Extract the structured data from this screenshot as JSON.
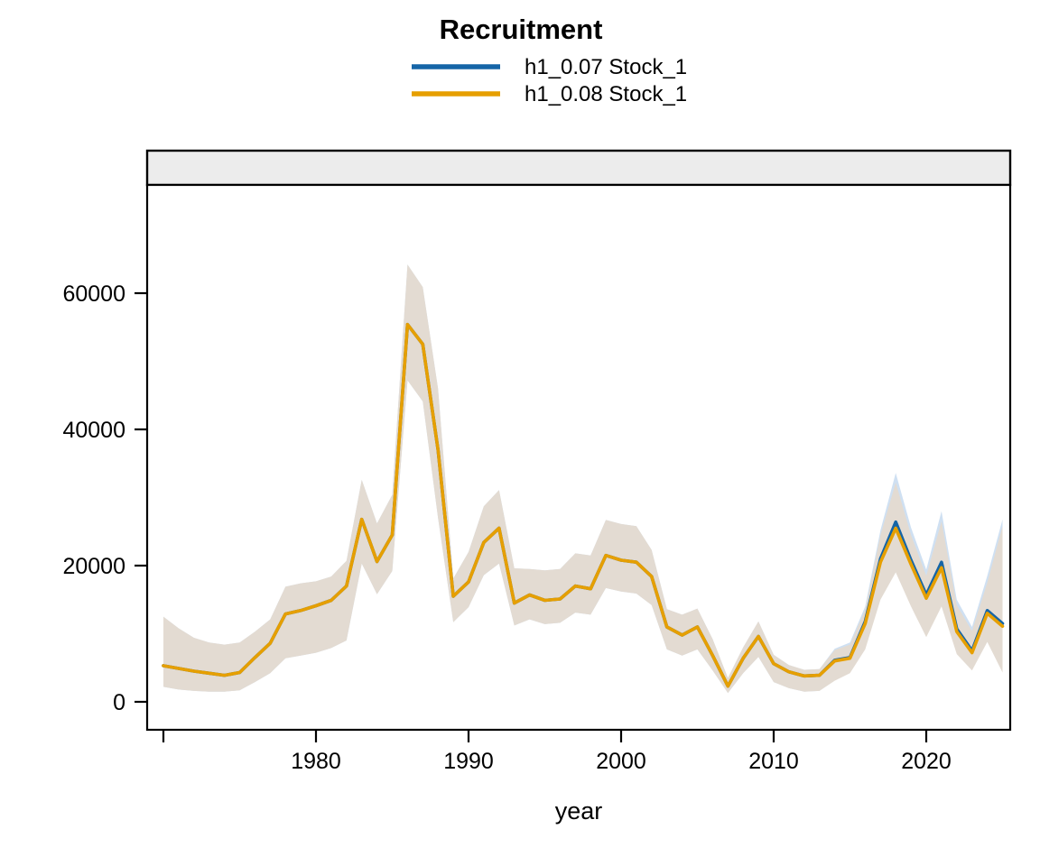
{
  "title": "Recruitment",
  "legend": {
    "items": [
      {
        "label": "h1_0.07 Stock_1",
        "color": "#1565a7"
      },
      {
        "label": "h1_0.08 Stock_1",
        "color": "#e69f00"
      }
    ]
  },
  "axes": {
    "xlabel": "year",
    "yticks": [
      0,
      20000,
      40000,
      60000
    ],
    "xticks": [
      {
        "year": 1970,
        "label": ""
      },
      {
        "year": 1980,
        "label": "1980"
      },
      {
        "year": 1990,
        "label": "1990"
      },
      {
        "year": 2000,
        "label": "2000"
      },
      {
        "year": 2010,
        "label": "2010"
      },
      {
        "year": 2020,
        "label": "2020"
      }
    ]
  },
  "colors": {
    "strip_fill": "#ececec",
    "panel_border": "#000000",
    "background": "#ffffff"
  },
  "chart_data": {
    "type": "line",
    "title": "Recruitment",
    "xlabel": "year",
    "ylabel": "",
    "xlim": [
      1968.9,
      2025.6
    ],
    "ylim": [
      -4200,
      75900
    ],
    "grid": false,
    "legend_position": "top",
    "x": [
      1970,
      1971,
      1972,
      1973,
      1974,
      1975,
      1976,
      1977,
      1978,
      1979,
      1980,
      1981,
      1982,
      1983,
      1984,
      1985,
      1986,
      1987,
      1988,
      1989,
      1990,
      1991,
      1992,
      1993,
      1994,
      1995,
      1996,
      1997,
      1998,
      1999,
      2000,
      2001,
      2002,
      2003,
      2004,
      2005,
      2006,
      2007,
      2008,
      2009,
      2010,
      2011,
      2012,
      2013,
      2014,
      2015,
      2016,
      2017,
      2018,
      2019,
      2020,
      2021,
      2022,
      2023,
      2024,
      2025
    ],
    "series": [
      {
        "name": "h1_0.07 Stock_1",
        "key": "h1-007-stock-1",
        "color": "#1565a7",
        "ribbon_color": "#cfe0f2",
        "values": [
          5300,
          4900,
          4500,
          4200,
          3900,
          4300,
          6500,
          8600,
          12900,
          13400,
          14100,
          14900,
          17000,
          26800,
          20600,
          24500,
          55400,
          52500,
          37000,
          15500,
          17600,
          23400,
          25500,
          14500,
          15700,
          14900,
          15100,
          17000,
          16600,
          21500,
          20800,
          20500,
          18400,
          11000,
          9800,
          11000,
          6800,
          2300,
          6400,
          9600,
          5600,
          4400,
          3800,
          3900,
          6100,
          6500,
          11800,
          21000,
          26400,
          20800,
          15700,
          20500,
          10700,
          7500,
          13400,
          11500
        ],
        "lo": [
          2200,
          1800,
          1600,
          1500,
          1500,
          1700,
          2900,
          4200,
          6400,
          6800,
          7200,
          7900,
          9000,
          20300,
          15800,
          19200,
          47200,
          44100,
          27000,
          11700,
          13900,
          18600,
          20300,
          11200,
          12100,
          11400,
          11600,
          13100,
          12800,
          16700,
          16200,
          15900,
          14200,
          7700,
          6800,
          7700,
          4600,
          1300,
          4200,
          6600,
          2900,
          2000,
          1500,
          1600,
          3200,
          4300,
          7900,
          15400,
          19600,
          14400,
          9800,
          14400,
          7200,
          4800,
          9100,
          4500
        ],
        "hi": [
          12500,
          10800,
          9400,
          8700,
          8400,
          8700,
          10300,
          12100,
          16900,
          17400,
          17700,
          18400,
          20700,
          32600,
          26200,
          30400,
          64200,
          60900,
          46000,
          18100,
          22000,
          28700,
          31100,
          19600,
          19500,
          19300,
          19500,
          21800,
          21500,
          26700,
          26100,
          25800,
          22300,
          13600,
          12800,
          13700,
          9200,
          3500,
          8000,
          11800,
          6900,
          5400,
          4700,
          4800,
          7800,
          8700,
          14000,
          25200,
          33600,
          25600,
          19400,
          28000,
          15000,
          11000,
          18500,
          26800
        ]
      },
      {
        "name": "h1_0.08 Stock_1",
        "key": "h1-008-stock-1",
        "color": "#e69f00",
        "ribbon_color": "#e3dbd2",
        "values": [
          5300,
          4900,
          4500,
          4200,
          3900,
          4300,
          6500,
          8600,
          12900,
          13400,
          14100,
          14900,
          17000,
          26800,
          20600,
          24500,
          55400,
          52500,
          37000,
          15500,
          17600,
          23400,
          25500,
          14500,
          15700,
          14900,
          15100,
          17000,
          16600,
          21500,
          20800,
          20500,
          18400,
          11000,
          9800,
          11000,
          6800,
          2300,
          6400,
          9600,
          5600,
          4400,
          3800,
          3900,
          6000,
          6400,
          11500,
          20500,
          25500,
          20200,
          15200,
          19700,
          10300,
          7200,
          13000,
          11100
        ],
        "lo": [
          2200,
          1800,
          1600,
          1500,
          1500,
          1700,
          2900,
          4200,
          6400,
          6800,
          7200,
          7900,
          9000,
          20300,
          15800,
          19200,
          47200,
          44100,
          27000,
          11700,
          13900,
          18600,
          20300,
          11200,
          12100,
          11400,
          11600,
          13100,
          12800,
          16700,
          16200,
          15900,
          14200,
          7700,
          6800,
          7700,
          4600,
          1300,
          4200,
          6600,
          2900,
          2000,
          1500,
          1600,
          3100,
          4200,
          7700,
          15000,
          19000,
          14000,
          9500,
          14000,
          7000,
          4600,
          8800,
          4300
        ],
        "hi": [
          12500,
          10800,
          9400,
          8700,
          8400,
          8700,
          10300,
          12100,
          16900,
          17400,
          17700,
          18400,
          20700,
          32600,
          26200,
          30400,
          64200,
          60900,
          46000,
          18100,
          22000,
          28700,
          31100,
          19600,
          19500,
          19300,
          19500,
          21800,
          21500,
          26700,
          26100,
          25800,
          22300,
          13600,
          12800,
          13700,
          9200,
          3500,
          8000,
          11800,
          6900,
          5400,
          4700,
          4800,
          7600,
          8400,
          13500,
          24500,
          32200,
          24500,
          18500,
          26500,
          14200,
          10400,
          17500,
          25800
        ]
      }
    ]
  }
}
